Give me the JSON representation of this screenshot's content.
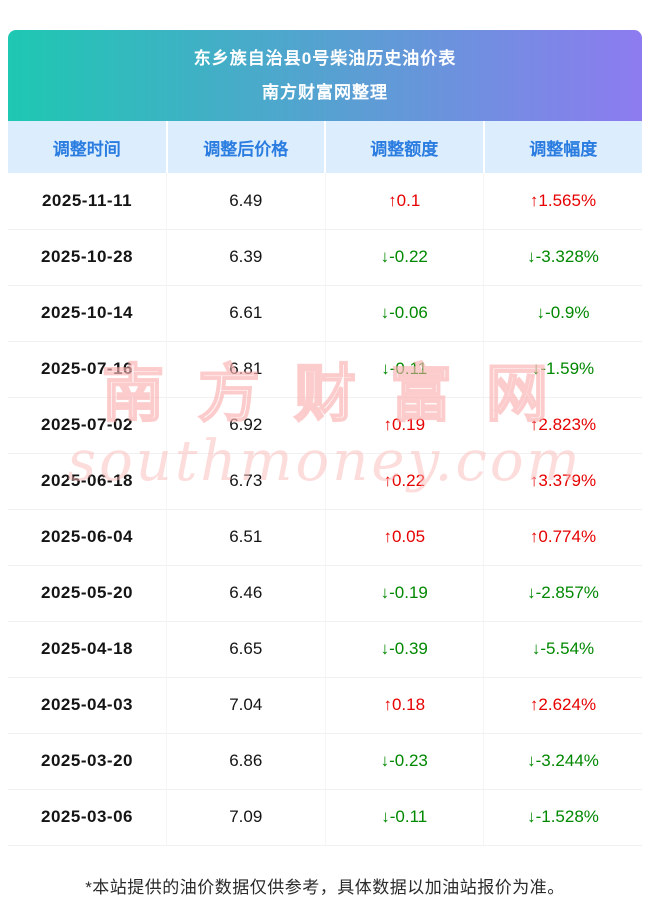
{
  "header": {
    "title_line1": "东乡族自治县0号柴油历史油价表",
    "title_line2": "南方财富网整理"
  },
  "table": {
    "columns": [
      "调整时间",
      "调整后价格",
      "调整额度",
      "调整幅度"
    ],
    "rows": [
      {
        "date": "2025-11-11",
        "price": "6.49",
        "change": "↑0.1",
        "change_pct": "↑1.565%",
        "direction": "up"
      },
      {
        "date": "2025-10-28",
        "price": "6.39",
        "change": "↓-0.22",
        "change_pct": "↓-3.328%",
        "direction": "down"
      },
      {
        "date": "2025-10-14",
        "price": "6.61",
        "change": "↓-0.06",
        "change_pct": "↓-0.9%",
        "direction": "down"
      },
      {
        "date": "2025-07-16",
        "price": "6.81",
        "change": "↓-0.11",
        "change_pct": "↓-1.59%",
        "direction": "down"
      },
      {
        "date": "2025-07-02",
        "price": "6.92",
        "change": "↑0.19",
        "change_pct": "↑2.823%",
        "direction": "up"
      },
      {
        "date": "2025-06-18",
        "price": "6.73",
        "change": "↑0.22",
        "change_pct": "↑3.379%",
        "direction": "up"
      },
      {
        "date": "2025-06-04",
        "price": "6.51",
        "change": "↑0.05",
        "change_pct": "↑0.774%",
        "direction": "up"
      },
      {
        "date": "2025-05-20",
        "price": "6.46",
        "change": "↓-0.19",
        "change_pct": "↓-2.857%",
        "direction": "down"
      },
      {
        "date": "2025-04-18",
        "price": "6.65",
        "change": "↓-0.39",
        "change_pct": "↓-5.54%",
        "direction": "down"
      },
      {
        "date": "2025-04-03",
        "price": "7.04",
        "change": "↑0.18",
        "change_pct": "↑2.624%",
        "direction": "up"
      },
      {
        "date": "2025-03-20",
        "price": "6.86",
        "change": "↓-0.23",
        "change_pct": "↓-3.244%",
        "direction": "down"
      },
      {
        "date": "2025-03-06",
        "price": "7.09",
        "change": "↓-0.11",
        "change_pct": "↓-1.528%",
        "direction": "down"
      }
    ]
  },
  "watermark": {
    "line1": "南方财富网",
    "line2": "southmoney.com"
  },
  "footer": {
    "note": "*本站提供的油价数据仅供参考，具体数据以加油站报价为准。"
  },
  "colors": {
    "up": "#e60000",
    "down": "#008800",
    "header_gradient_start": "#1ec8b2",
    "header_gradient_end": "#8d7bf0",
    "table_header_bg": "#dceefd",
    "table_header_text": "#2a7ce0"
  }
}
